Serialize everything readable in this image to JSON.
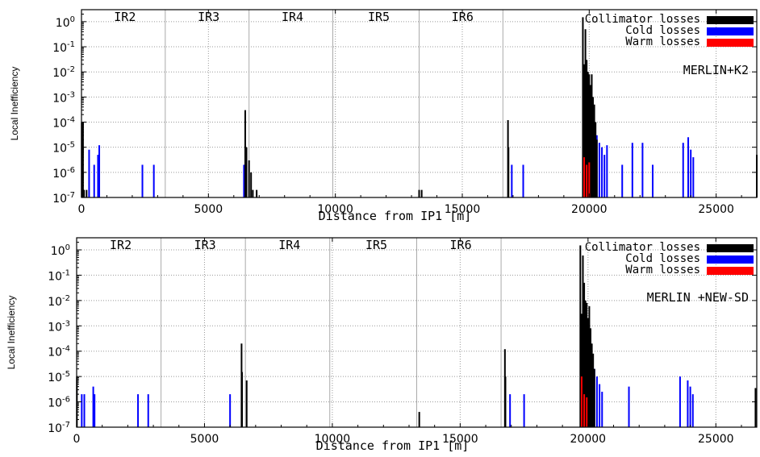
{
  "chart_data": [
    {
      "type": "bar",
      "annotation": "MERLIN+K2",
      "xlabel": "Distance from IP1 [m]",
      "ylabel": "Local Inefficiency",
      "xlim": [
        0,
        26600
      ],
      "ylim": [
        1e-07,
        3
      ],
      "yscale": "log",
      "grid": true,
      "xticks": [
        0,
        5000,
        10000,
        15000,
        20000,
        25000
      ],
      "yticks": [
        {
          "v": 1e-07,
          "m": "10",
          "e": "-7"
        },
        {
          "v": 1e-06,
          "m": "10",
          "e": "-6"
        },
        {
          "v": 1e-05,
          "m": "10",
          "e": "-5"
        },
        {
          "v": 0.0001,
          "m": "10",
          "e": "-4"
        },
        {
          "v": 0.001,
          "m": "10",
          "e": "-3"
        },
        {
          "v": 0.01,
          "m": "10",
          "e": "-2"
        },
        {
          "v": 0.1,
          "m": "10",
          "e": "-1"
        },
        {
          "v": 1,
          "m": "10",
          "e": "0"
        }
      ],
      "ir_labels": [
        {
          "label": "IR2",
          "x": 3300
        },
        {
          "label": "IR3",
          "x": 6600
        },
        {
          "label": "IR4",
          "x": 9900
        },
        {
          "label": "IR5",
          "x": 13300
        },
        {
          "label": "IR6",
          "x": 16600
        }
      ],
      "ir_lines": [
        3300,
        6600,
        9900,
        13300,
        16600
      ],
      "legend_position": "top-right",
      "series": [
        {
          "name": "Collimator losses",
          "color": "#000000",
          "points": [
            [
              10,
              0.0001
            ],
            [
              60,
              0.0001
            ],
            [
              100,
              2e-07
            ],
            [
              200,
              2e-07
            ],
            [
              6450,
              0.0003
            ],
            [
              6500,
              1e-05
            ],
            [
              6600,
              3e-06
            ],
            [
              6680,
              1e-06
            ],
            [
              6750,
              2e-07
            ],
            [
              6900,
              2e-07
            ],
            [
              13300,
              2e-07
            ],
            [
              13400,
              2e-07
            ],
            [
              16800,
              0.00012
            ],
            [
              16820,
              1e-05
            ],
            [
              19750,
              1.5
            ],
            [
              19800,
              0.02
            ],
            [
              19850,
              0.5
            ],
            [
              19900,
              0.03
            ],
            [
              19950,
              0.01
            ],
            [
              20000,
              0.008
            ],
            [
              20050,
              0.003
            ],
            [
              20100,
              0.008
            ],
            [
              20150,
              0.001
            ],
            [
              20200,
              0.0005
            ],
            [
              20250,
              0.0001
            ],
            [
              20300,
              2e-05
            ],
            [
              26600,
              5e-06
            ]
          ]
        },
        {
          "name": "Cold losses",
          "color": "#0000ff",
          "points": [
            [
              300,
              8e-06
            ],
            [
              500,
              2e-06
            ],
            [
              650,
              5e-06
            ],
            [
              700,
              1.2e-05
            ],
            [
              2400,
              2e-06
            ],
            [
              2850,
              2e-06
            ],
            [
              6400,
              2e-06
            ],
            [
              16950,
              2e-06
            ],
            [
              17400,
              2e-06
            ],
            [
              20300,
              3e-05
            ],
            [
              20400,
              1.5e-05
            ],
            [
              20500,
              1e-05
            ],
            [
              20600,
              5e-06
            ],
            [
              20700,
              1.2e-05
            ],
            [
              21300,
              2e-06
            ],
            [
              21700,
              1.5e-05
            ],
            [
              22100,
              1.5e-05
            ],
            [
              22500,
              2e-06
            ],
            [
              23700,
              1.5e-05
            ],
            [
              23900,
              2.5e-05
            ],
            [
              24000,
              8e-06
            ],
            [
              24100,
              4e-06
            ]
          ]
        },
        {
          "name": "Warm losses",
          "color": "#ff0000",
          "points": [
            [
              19800,
              4e-06
            ],
            [
              19900,
              2e-06
            ],
            [
              20000,
              2.5e-06
            ]
          ]
        }
      ]
    },
    {
      "type": "bar",
      "annotation": "MERLIN +NEW-SD",
      "xlabel": "Distance from IP1 [m]",
      "ylabel": "Local Inefficiency",
      "xlim": [
        0,
        26600
      ],
      "ylim": [
        1e-07,
        3
      ],
      "yscale": "log",
      "grid": true,
      "xticks": [
        0,
        5000,
        10000,
        15000,
        20000,
        25000
      ],
      "yticks": [
        {
          "v": 1e-07,
          "m": "10",
          "e": "-7"
        },
        {
          "v": 1e-06,
          "m": "10",
          "e": "-6"
        },
        {
          "v": 1e-05,
          "m": "10",
          "e": "-5"
        },
        {
          "v": 0.0001,
          "m": "10",
          "e": "-4"
        },
        {
          "v": 0.001,
          "m": "10",
          "e": "-3"
        },
        {
          "v": 0.01,
          "m": "10",
          "e": "-2"
        },
        {
          "v": 0.1,
          "m": "10",
          "e": "-1"
        },
        {
          "v": 1,
          "m": "10",
          "e": "0"
        }
      ],
      "ir_labels": [
        {
          "label": "IR2",
          "x": 3300
        },
        {
          "label": "IR3",
          "x": 6600
        },
        {
          "label": "IR4",
          "x": 9900
        },
        {
          "label": "IR5",
          "x": 13300
        },
        {
          "label": "IR6",
          "x": 16600
        }
      ],
      "ir_lines": [
        3300,
        6600,
        9900,
        13300,
        16600
      ],
      "legend_position": "top-right",
      "series": [
        {
          "name": "Collimator losses",
          "color": "#000000",
          "points": [
            [
              10,
              1e-05
            ],
            [
              6450,
              0.0002
            ],
            [
              6470,
              1.5e-05
            ],
            [
              6650,
              7e-06
            ],
            [
              13400,
              4e-07
            ],
            [
              16750,
              0.00012
            ],
            [
              16770,
              1e-05
            ],
            [
              19700,
              1.5
            ],
            [
              19750,
              0.003
            ],
            [
              19800,
              0.6
            ],
            [
              19850,
              0.05
            ],
            [
              19900,
              0.01
            ],
            [
              19950,
              0.008
            ],
            [
              20000,
              0.002
            ],
            [
              20050,
              0.006
            ],
            [
              20100,
              0.0008
            ],
            [
              20150,
              0.0002
            ],
            [
              20200,
              8e-05
            ],
            [
              20250,
              2e-05
            ],
            [
              26550,
              3.5e-06
            ]
          ]
        },
        {
          "name": "Cold losses",
          "color": "#0000ff",
          "points": [
            [
              200,
              2e-06
            ],
            [
              300,
              2e-06
            ],
            [
              650,
              4e-06
            ],
            [
              700,
              2e-06
            ],
            [
              2400,
              2e-06
            ],
            [
              2800,
              2e-06
            ],
            [
              6000,
              2e-06
            ],
            [
              16950,
              2e-06
            ],
            [
              17500,
              2e-06
            ],
            [
              20250,
              2e-05
            ],
            [
              20350,
              1e-05
            ],
            [
              20450,
              5e-06
            ],
            [
              20550,
              2.5e-06
            ],
            [
              21600,
              4e-06
            ],
            [
              23600,
              1e-05
            ],
            [
              23900,
              7e-06
            ],
            [
              24000,
              4e-06
            ],
            [
              24100,
              2e-06
            ]
          ]
        },
        {
          "name": "Warm losses",
          "color": "#ff0000",
          "points": [
            [
              19750,
              1e-05
            ],
            [
              19850,
              2e-06
            ],
            [
              19950,
              1.5e-06
            ]
          ]
        }
      ]
    }
  ]
}
